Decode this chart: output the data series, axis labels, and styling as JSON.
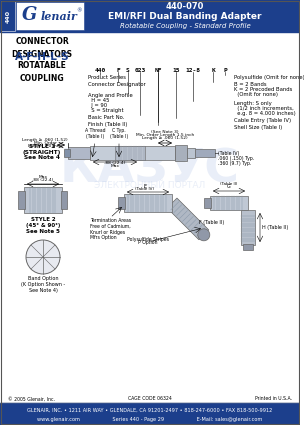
{
  "title_part": "440-070",
  "title_line1": "EMI/RFI Dual Banding Adapter",
  "title_line2": "Rotatable Coupling - Standard Profile",
  "header_bg": "#1c3f8c",
  "header_text_color": "#ffffff",
  "body_bg": "#ffffff",
  "border_color": "#333333",
  "blue_text": "#1c3f8c",
  "series_label": "440",
  "connector_designators": "CONNECTOR\nDESIGNATORS",
  "designator_letters": "A-F-H-L-S",
  "rotatable_coupling": "ROTATABLE\nCOUPLING",
  "part_number_line": "440  F  S  023  NF  15  12-8  K  P",
  "footer_line1": "GLENAIR, INC. • 1211 AIR WAY • GLENDALE, CA 91201-2497 • 818-247-6000 • FAX 818-500-9912",
  "footer_line2": "www.glenair.com                    Series 440 - Page 29                    E-Mail: sales@glenair.com",
  "footer_bg": "#1c3f8c",
  "copyright": "© 2005 Glenair, Inc.",
  "made_in": "Printed in U.S.A.",
  "cage_code": "CAGE CODE 06324"
}
